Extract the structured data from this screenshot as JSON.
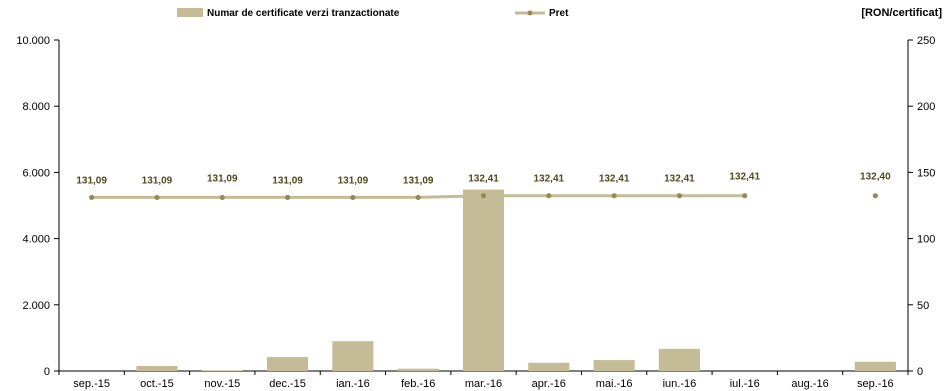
{
  "chart_data": {
    "type": "bar",
    "categories": [
      "sep.-15",
      "oct.-15",
      "nov.-15",
      "dec.-15",
      "ian.-16",
      "feb.-16",
      "mar.-16",
      "apr.-16",
      "mai.-16",
      "iun.-16",
      "iul.-16",
      "aug.-16",
      "sep.-16"
    ],
    "series": [
      {
        "name": "Numar de certificate verzi tranzactionate",
        "type": "bar",
        "axis": "left",
        "color": "#c4bc96",
        "values": [
          0,
          150,
          20,
          420,
          900,
          70,
          5480,
          250,
          330,
          670,
          0,
          0,
          280
        ]
      },
      {
        "name": "Pret",
        "type": "line",
        "axis": "right",
        "color": "#c4bc96",
        "marker_color": "#948a54",
        "values": [
          131.09,
          131.09,
          131.09,
          131.09,
          131.09,
          131.09,
          132.41,
          132.41,
          132.41,
          132.41,
          132.41,
          null,
          132.4
        ],
        "data_labels": [
          "131,09",
          "131,09",
          "131,09",
          "131,09",
          "131,09",
          "131,09",
          "132,41",
          "132,41",
          "132,41",
          "132,41",
          "132,41",
          "",
          "132,40"
        ]
      }
    ],
    "y_left": {
      "ticks": [
        "0",
        "2.000",
        "4.000",
        "6.000",
        "8.000",
        "10.000"
      ],
      "ylim": [
        0,
        10000
      ]
    },
    "y_right": {
      "ticks": [
        "0",
        "50",
        "100",
        "150",
        "200",
        "250"
      ],
      "ylim": [
        0,
        250
      ],
      "label": "[RON/certificat]"
    },
    "legend_position": "top",
    "grid": false,
    "label_color": "#4f4a1e"
  }
}
